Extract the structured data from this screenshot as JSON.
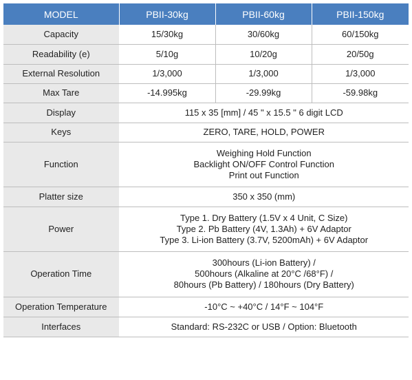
{
  "header": [
    "MODEL",
    "PBII-30kg",
    "PBII-60kg",
    "PBII-150kg"
  ],
  "rows": {
    "capacity": {
      "label": "Capacity",
      "values": [
        "15/30kg",
        "30/60kg",
        "60/150kg"
      ]
    },
    "readability": {
      "label": "Readability (e)",
      "values": [
        "5/10g",
        "10/20g",
        "20/50g"
      ]
    },
    "external_resolution": {
      "label": "External Resolution",
      "values": [
        "1/3,000",
        "1/3,000",
        "1/3,000"
      ]
    },
    "max_tare": {
      "label": "Max Tare",
      "values": [
        "-14.995kg",
        "-29.99kg",
        "-59.98kg"
      ]
    },
    "display": {
      "label": "Display",
      "value": "115 x 35 [mm] / 45 \" x 15.5 \" 6 digit LCD"
    },
    "keys": {
      "label": "Keys",
      "value": "ZERO, TARE, HOLD, POWER"
    },
    "function": {
      "label": "Function",
      "lines": [
        "Weighing Hold Function",
        "Backlight ON/OFF Control Function",
        "Print out Function"
      ]
    },
    "platter_size": {
      "label": "Platter size",
      "value": "350 x 350 (mm)"
    },
    "power": {
      "label": "Power",
      "lines": [
        "Type 1. Dry Battery (1.5V x 4 Unit, C Size)",
        "Type 2. Pb Battery (4V, 1.3Ah) + 6V Adaptor",
        "Type 3. Li-ion Battery (3.7V, 5200mAh) + 6V Adaptor"
      ]
    },
    "operation_time": {
      "label": "Operation Time",
      "lines": [
        "300hours (Li-ion Battery) /",
        "500hours (Alkaline at 20°C /68°F) /",
        "80hours (Pb Battery) / 180hours (Dry Battery)"
      ]
    },
    "operation_temperature": {
      "label": "Operation Temperature",
      "value": "-10°C ~ +40°C / 14°F ~ 104°F"
    },
    "interfaces": {
      "label": "Interfaces",
      "value": "Standard: RS-232C or USB / Option: Bluetooth"
    }
  },
  "colors": {
    "header_bg": "#4a7fbf",
    "label_bg": "#e9e9e9",
    "border": "#bdbdbd"
  }
}
